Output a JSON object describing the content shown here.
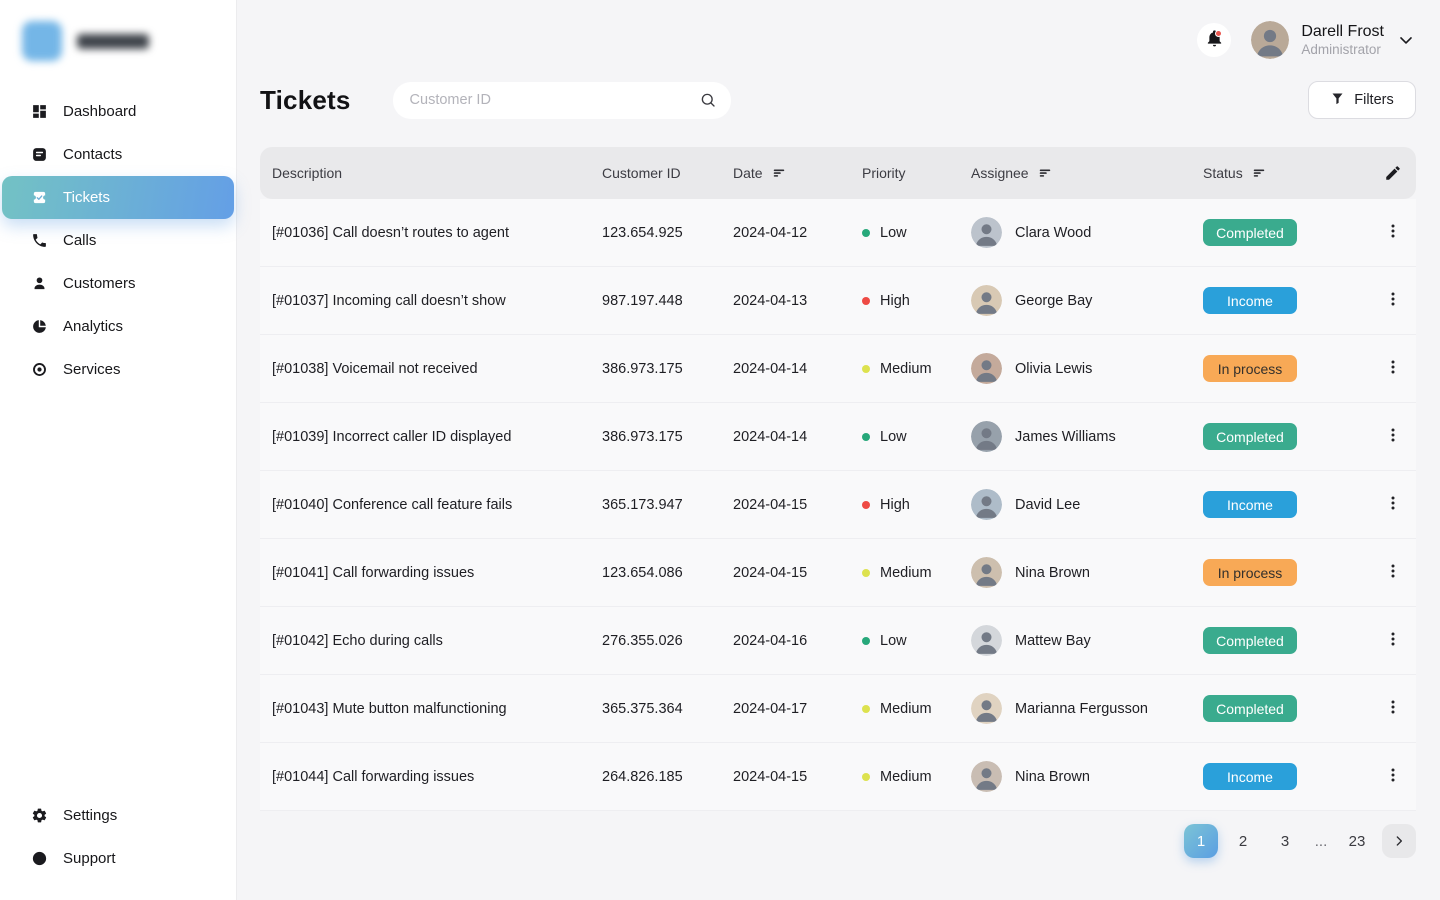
{
  "sidebar": {
    "nav": [
      {
        "id": "dashboard",
        "label": "Dashboard",
        "icon": "dashboard-icon",
        "active": false
      },
      {
        "id": "contacts",
        "label": "Contacts",
        "icon": "contacts-icon",
        "active": false
      },
      {
        "id": "tickets",
        "label": "Tickets",
        "icon": "ticket-icon",
        "active": true
      },
      {
        "id": "calls",
        "label": "Calls",
        "icon": "phone-icon",
        "active": false
      },
      {
        "id": "customers",
        "label": "Customers",
        "icon": "person-icon",
        "active": false
      },
      {
        "id": "analytics",
        "label": "Analytics",
        "icon": "pie-chart-icon",
        "active": false
      },
      {
        "id": "services",
        "label": "Services",
        "icon": "services-icon",
        "active": false
      }
    ],
    "footer_nav": [
      {
        "id": "settings",
        "label": "Settings",
        "icon": "gear-icon"
      },
      {
        "id": "support",
        "label": "Support",
        "icon": "life-buoy-icon"
      }
    ]
  },
  "header": {
    "notification_icon": "bell-icon",
    "user": {
      "name": "Darell Frost",
      "role": "Administrator"
    }
  },
  "page": {
    "title": "Tickets",
    "search_placeholder": "Customer ID",
    "filters_label": "Filters"
  },
  "table": {
    "columns": [
      {
        "key": "description",
        "label": "Description",
        "sortable": false
      },
      {
        "key": "customer_id",
        "label": "Customer ID",
        "sortable": false
      },
      {
        "key": "date",
        "label": "Date",
        "sortable": true
      },
      {
        "key": "priority",
        "label": "Priority",
        "sortable": false
      },
      {
        "key": "assignee",
        "label": "Assignee",
        "sortable": true
      },
      {
        "key": "status",
        "label": "Status",
        "sortable": true
      }
    ],
    "rows": [
      {
        "description": "[#01036] Call doesn’t routes to agent",
        "customer_id": "123.654.925",
        "date": "2024-04-12",
        "priority": "Low",
        "assignee": "Clara Wood",
        "status": "Completed"
      },
      {
        "description": "[#01037] Incoming call doesn’t show",
        "customer_id": "987.197.448",
        "date": "2024-04-13",
        "priority": "High",
        "assignee": "George Bay",
        "status": "Income"
      },
      {
        "description": "[#01038] Voicemail not received",
        "customer_id": "386.973.175",
        "date": "2024-04-14",
        "priority": "Medium",
        "assignee": "Olivia Lewis",
        "status": "In process"
      },
      {
        "description": "[#01039] Incorrect caller ID displayed",
        "customer_id": "386.973.175",
        "date": "2024-04-14",
        "priority": "Low",
        "assignee": "James Williams",
        "status": "Completed"
      },
      {
        "description": "[#01040] Conference call feature fails",
        "customer_id": "365.173.947",
        "date": "2024-04-15",
        "priority": "High",
        "assignee": "David Lee",
        "status": "Income"
      },
      {
        "description": "[#01041] Call forwarding issues",
        "customer_id": "123.654.086",
        "date": "2024-04-15",
        "priority": "Medium",
        "assignee": "Nina Brown",
        "status": "In process"
      },
      {
        "description": "[#01042] Echo during calls",
        "customer_id": "276.355.026",
        "date": "2024-04-16",
        "priority": "Low",
        "assignee": "Mattew Bay",
        "status": "Completed"
      },
      {
        "description": "[#01043] Mute button malfunctioning",
        "customer_id": "365.375.364",
        "date": "2024-04-17",
        "priority": "Medium",
        "assignee": "Marianna Fergusson",
        "status": "Completed"
      },
      {
        "description": "[#01044] Call forwarding issues",
        "customer_id": "264.826.185",
        "date": "2024-04-15",
        "priority": "Medium",
        "assignee": "Nina Brown",
        "status": "Income"
      }
    ]
  },
  "pagination": {
    "pages": [
      "1",
      "2",
      "3",
      "...",
      "23"
    ],
    "active": "1",
    "next_icon": "chevron-right-icon"
  },
  "colors": {
    "priority": {
      "Low": "#27a87a",
      "High": "#ee4a44",
      "Medium": "#dde24e"
    },
    "status_bg": {
      "Completed": "#3aab8e",
      "Income": "#2aa0da",
      "In process": "#f8a956"
    },
    "status_text": {
      "Completed": "#ffffff",
      "Income": "#ffffff",
      "In process": "#33302c"
    },
    "accent_gradient": [
      "#73c2c4",
      "#649fe6"
    ]
  }
}
